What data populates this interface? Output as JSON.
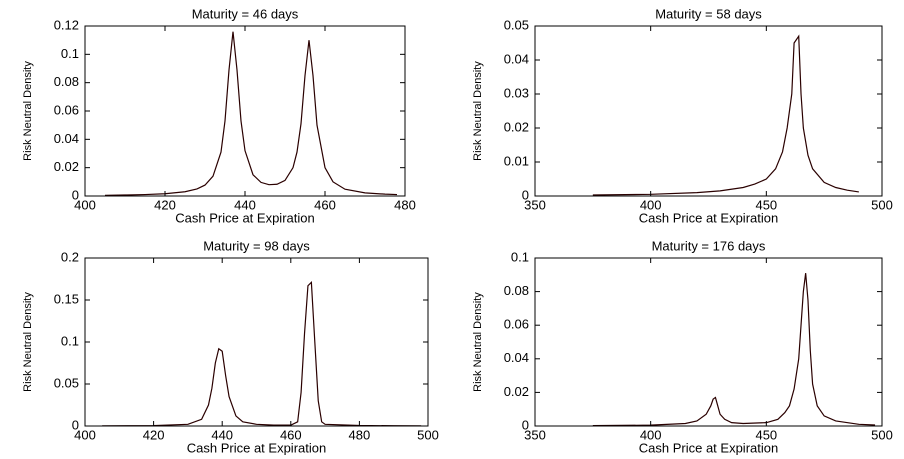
{
  "chart_data": [
    {
      "type": "line",
      "title": "Maturity = 46 days",
      "x_label": "Cash Price at Expiration",
      "y_label": "Risk Neutral Density",
      "color": "#2a0000",
      "x": [
        405,
        410,
        415,
        420,
        425,
        428,
        430,
        432,
        434,
        435,
        436,
        437,
        438,
        439,
        440,
        442,
        444,
        446,
        448,
        450,
        452,
        453,
        454,
        455,
        456,
        457,
        458,
        460,
        462,
        465,
        470,
        475,
        478
      ],
      "values": [
        0.0005,
        0.0007,
        0.001,
        0.0016,
        0.003,
        0.005,
        0.0077,
        0.014,
        0.031,
        0.053,
        0.089,
        0.116,
        0.089,
        0.053,
        0.032,
        0.015,
        0.0096,
        0.008,
        0.0083,
        0.011,
        0.02,
        0.031,
        0.051,
        0.085,
        0.11,
        0.085,
        0.05,
        0.02,
        0.01,
        0.0048,
        0.0022,
        0.0013,
        0.001
      ],
      "xlim": [
        400,
        480
      ],
      "xticks": [
        400,
        420,
        440,
        460,
        480
      ],
      "ylim": [
        0,
        0.12
      ],
      "yticks": [
        0,
        0.02,
        0.04,
        0.06,
        0.08,
        0.1,
        0.12
      ]
    },
    {
      "type": "line",
      "title": "Maturity = 58 days",
      "x_label": "Cash Price at Expiration",
      "y_label": "Risk Neutral Density",
      "color": "#2a0000",
      "x": [
        375,
        400,
        420,
        430,
        440,
        445,
        450,
        454,
        457,
        459,
        461,
        462,
        463,
        464,
        465,
        466,
        468,
        470,
        475,
        480,
        485,
        490
      ],
      "values": [
        0.0003,
        0.0005,
        0.001,
        0.0015,
        0.0025,
        0.0035,
        0.005,
        0.008,
        0.013,
        0.02,
        0.03,
        0.045,
        0.046,
        0.047,
        0.03,
        0.02,
        0.012,
        0.008,
        0.004,
        0.0025,
        0.0017,
        0.0012
      ],
      "xlim": [
        350,
        500
      ],
      "xticks": [
        350,
        400,
        450,
        500
      ],
      "ylim": [
        0,
        0.05
      ],
      "yticks": [
        0,
        0.01,
        0.02,
        0.03,
        0.04,
        0.05
      ]
    },
    {
      "type": "line",
      "title": "Maturity = 98 days",
      "x_label": "Cash Price at Expiration",
      "y_label": "Risk Neutral Density",
      "color": "#2a0000",
      "x": [
        405,
        420,
        430,
        434,
        436,
        437,
        438,
        439,
        440,
        441,
        442,
        444,
        446,
        450,
        455,
        460,
        462,
        463,
        464,
        465,
        466,
        467,
        468,
        469,
        470,
        480,
        490,
        498
      ],
      "values": [
        0.0002,
        0.0005,
        0.002,
        0.008,
        0.025,
        0.045,
        0.075,
        0.092,
        0.089,
        0.06,
        0.035,
        0.012,
        0.005,
        0.002,
        0.001,
        0.001,
        0.005,
        0.04,
        0.11,
        0.167,
        0.171,
        0.1,
        0.03,
        0.005,
        0.002,
        0.0006,
        0.0003,
        0.0002
      ],
      "xlim": [
        400,
        500
      ],
      "xticks": [
        400,
        420,
        440,
        460,
        480,
        500
      ],
      "ylim": [
        0,
        0.2
      ],
      "yticks": [
        0,
        0.05,
        0.1,
        0.15,
        0.2
      ]
    },
    {
      "type": "line",
      "title": "Maturity = 176 days",
      "x_label": "Cash Price at Expiration",
      "y_label": "Risk Neutral Density",
      "color": "#2a0000",
      "x": [
        375,
        400,
        415,
        420,
        424,
        426,
        427,
        428,
        429,
        430,
        432,
        435,
        440,
        450,
        455,
        458,
        460,
        462,
        464,
        465,
        466,
        467,
        468,
        469,
        470,
        472,
        475,
        480,
        490,
        497
      ],
      "values": [
        0.0002,
        0.0005,
        0.0015,
        0.003,
        0.007,
        0.012,
        0.016,
        0.017,
        0.012,
        0.007,
        0.004,
        0.002,
        0.0015,
        0.002,
        0.004,
        0.008,
        0.012,
        0.022,
        0.04,
        0.06,
        0.08,
        0.091,
        0.075,
        0.045,
        0.025,
        0.012,
        0.006,
        0.003,
        0.001,
        0.0006
      ],
      "xlim": [
        350,
        500
      ],
      "xticks": [
        350,
        400,
        450,
        500
      ],
      "ylim": [
        0,
        0.1
      ],
      "yticks": [
        0,
        0.02,
        0.04,
        0.06,
        0.08,
        0.1
      ]
    }
  ]
}
